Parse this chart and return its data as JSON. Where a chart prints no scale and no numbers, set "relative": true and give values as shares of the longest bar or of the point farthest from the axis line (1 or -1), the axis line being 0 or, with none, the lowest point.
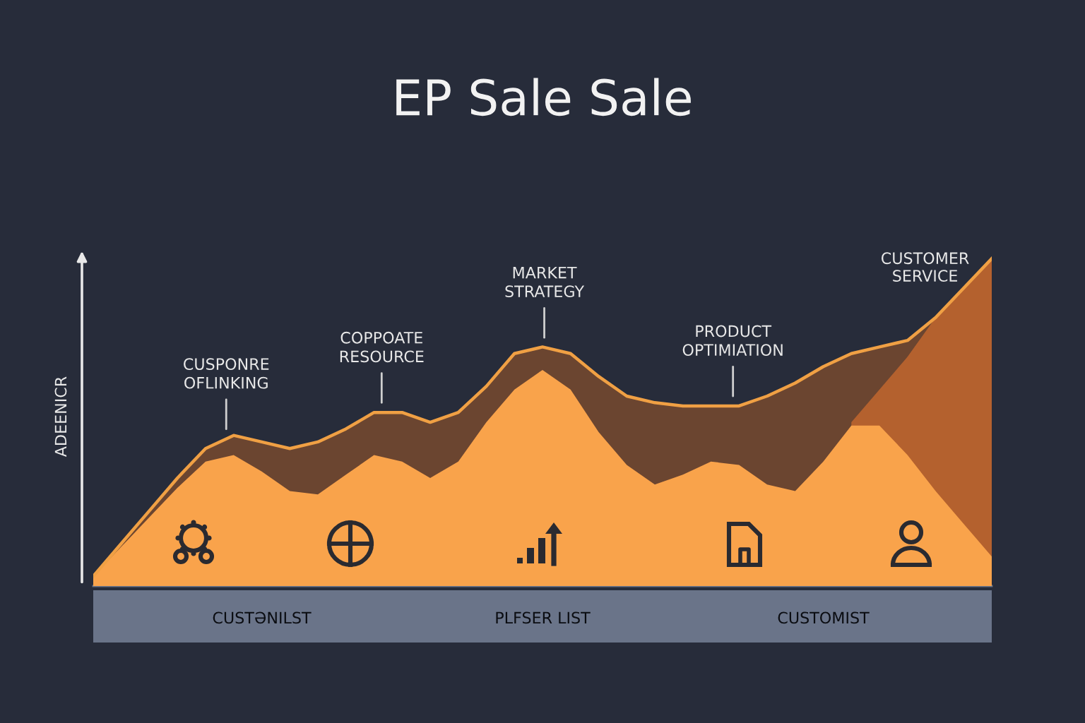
{
  "chart_data": {
    "type": "area",
    "title": "EP Sale Sale",
    "ylabel": "ADEENICR",
    "relative": true,
    "categories": [
      null,
      null,
      null,
      null,
      null,
      null,
      "CUSTƏNILST",
      null,
      null,
      null,
      null,
      null,
      null,
      null,
      null,
      null,
      "PLFSER LIST",
      null,
      null,
      null,
      null,
      null,
      null,
      null,
      null,
      null,
      "CUSTOMIST",
      null,
      null,
      null,
      null,
      null,
      null
    ],
    "series": [
      {
        "color": "#6b4530",
        "values": [
          0.03,
          0.13,
          0.23,
          0.33,
          0.42,
          0.46,
          0.44,
          0.42,
          0.44,
          0.48,
          0.53,
          0.53,
          0.5,
          0.53,
          0.61,
          0.71,
          0.73,
          0.71,
          0.64,
          0.58,
          0.56,
          0.55,
          0.55,
          0.55,
          0.58,
          0.62,
          0.67,
          0.71,
          0.73,
          0.75,
          0.82,
          0.91,
          1.0
        ]
      },
      {
        "name": "CUSTOMER\nSERVICE",
        "color": "#b4612e",
        "values": [
          null,
          null,
          null,
          null,
          null,
          null,
          null,
          null,
          null,
          null,
          null,
          null,
          null,
          null,
          null,
          null,
          null,
          null,
          null,
          null,
          null,
          null,
          null,
          null,
          null,
          null,
          null,
          0.5,
          0.6,
          0.7,
          0.82,
          0.91,
          1.0
        ]
      },
      {
        "color": "#f9a34b",
        "values": [
          0.03,
          0.12,
          0.21,
          0.3,
          0.38,
          0.4,
          0.35,
          0.29,
          0.28,
          0.34,
          0.4,
          0.38,
          0.33,
          0.38,
          0.5,
          0.6,
          0.66,
          0.6,
          0.47,
          0.37,
          0.31,
          0.34,
          0.38,
          0.37,
          0.31,
          0.29,
          0.38,
          0.49,
          0.49,
          0.4,
          0.29,
          0.19,
          0.09
        ]
      }
    ],
    "annotations": [
      "CUSPONRE\nOFLINKING",
      "COPPOATE\nRESOURCE",
      "MARKET\nSTRATEGY",
      "PRODUCT\nOPTIMIATION"
    ]
  }
}
